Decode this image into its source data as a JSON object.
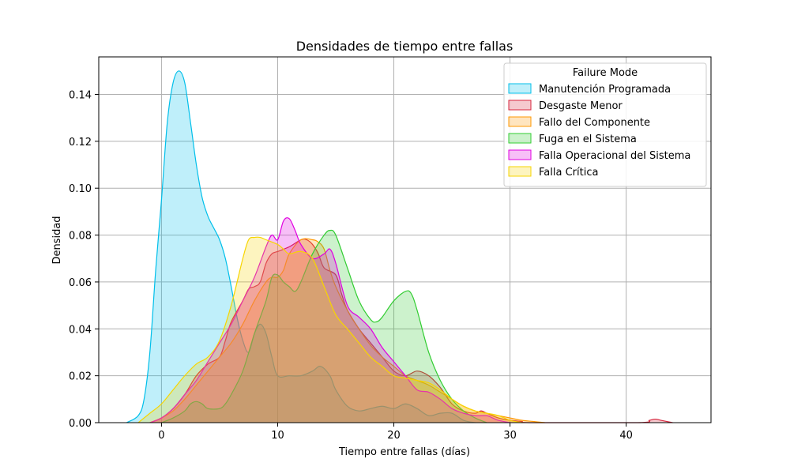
{
  "chart_data": {
    "type": "area",
    "title": "Densidades de tiempo entre fallas",
    "xlabel": "Tiempo entre fallas (días)",
    "ylabel": "Densidad",
    "xlim": [
      -5.4,
      47.3
    ],
    "ylim": [
      0,
      0.156
    ],
    "xticks": [
      0,
      10,
      20,
      30,
      40
    ],
    "yticks": [
      0.0,
      0.02,
      0.04,
      0.06,
      0.08,
      0.1,
      0.12,
      0.14
    ],
    "grid": true,
    "legend": {
      "title": "Failure Mode",
      "placement": "top-right"
    },
    "series": [
      {
        "name": "Manutención Programada",
        "color": "#00bfea",
        "points": [
          [
            -3,
            0
          ],
          [
            -2,
            0.003
          ],
          [
            -1.5,
            0.01
          ],
          [
            -1,
            0.03
          ],
          [
            -0.5,
            0.065
          ],
          [
            0,
            0.095
          ],
          [
            0.5,
            0.128
          ],
          [
            1,
            0.145
          ],
          [
            1.5,
            0.15
          ],
          [
            2,
            0.145
          ],
          [
            2.5,
            0.128
          ],
          [
            3,
            0.11
          ],
          [
            3.5,
            0.096
          ],
          [
            4,
            0.088
          ],
          [
            4.5,
            0.083
          ],
          [
            5,
            0.078
          ],
          [
            5.5,
            0.07
          ],
          [
            6,
            0.058
          ],
          [
            6.5,
            0.045
          ],
          [
            7,
            0.035
          ],
          [
            7.5,
            0.03
          ],
          [
            8,
            0.038
          ],
          [
            8.5,
            0.042
          ],
          [
            9,
            0.038
          ],
          [
            9.5,
            0.028
          ],
          [
            10,
            0.02
          ],
          [
            11,
            0.02
          ],
          [
            12,
            0.02
          ],
          [
            13,
            0.022
          ],
          [
            13.7,
            0.024
          ],
          [
            14.5,
            0.02
          ],
          [
            15,
            0.014
          ],
          [
            16,
            0.007
          ],
          [
            17,
            0.005
          ],
          [
            18,
            0.006
          ],
          [
            19,
            0.007
          ],
          [
            20,
            0.006
          ],
          [
            21,
            0.008
          ],
          [
            22,
            0.006
          ],
          [
            23,
            0.003
          ],
          [
            24,
            0.004
          ],
          [
            25,
            0.004
          ],
          [
            26,
            0.001
          ],
          [
            27,
            0
          ]
        ]
      },
      {
        "name": "Desgaste Menor",
        "color": "#d7263d",
        "points": [
          [
            -1,
            0
          ],
          [
            0,
            0.002
          ],
          [
            1,
            0.006
          ],
          [
            2,
            0.012
          ],
          [
            3,
            0.02
          ],
          [
            4,
            0.025
          ],
          [
            5,
            0.028
          ],
          [
            5.5,
            0.035
          ],
          [
            6,
            0.043
          ],
          [
            7,
            0.052
          ],
          [
            7.5,
            0.057
          ],
          [
            8,
            0.058
          ],
          [
            8.5,
            0.06
          ],
          [
            9,
            0.068
          ],
          [
            9.5,
            0.072
          ],
          [
            10,
            0.073
          ],
          [
            11,
            0.075
          ],
          [
            12,
            0.078
          ],
          [
            12.5,
            0.078
          ],
          [
            13,
            0.076
          ],
          [
            13.5,
            0.072
          ],
          [
            14,
            0.066
          ],
          [
            15,
            0.063
          ],
          [
            15.5,
            0.055
          ],
          [
            16,
            0.048
          ],
          [
            17,
            0.04
          ],
          [
            18,
            0.034
          ],
          [
            19,
            0.028
          ],
          [
            20,
            0.022
          ],
          [
            21,
            0.02
          ],
          [
            22,
            0.022
          ],
          [
            23,
            0.02
          ],
          [
            24,
            0.015
          ],
          [
            25,
            0.008
          ],
          [
            26,
            0.005
          ],
          [
            27,
            0.004
          ],
          [
            27.5,
            0.005
          ],
          [
            28,
            0.004
          ],
          [
            29,
            0.002
          ],
          [
            30,
            0.001
          ],
          [
            31,
            0.0005
          ],
          [
            32,
            0
          ],
          [
            41,
            0
          ],
          [
            42,
            0.001
          ],
          [
            42.5,
            0.0015
          ],
          [
            43,
            0.001
          ],
          [
            44,
            0
          ]
        ]
      },
      {
        "name": "Fallo del Componente",
        "color": "#ff9800",
        "points": [
          [
            -1,
            0
          ],
          [
            0,
            0.002
          ],
          [
            1,
            0.005
          ],
          [
            2,
            0.01
          ],
          [
            3,
            0.016
          ],
          [
            4,
            0.022
          ],
          [
            5,
            0.028
          ],
          [
            6,
            0.034
          ],
          [
            7,
            0.042
          ],
          [
            8,
            0.052
          ],
          [
            9,
            0.06
          ],
          [
            9.5,
            0.062
          ],
          [
            10,
            0.062
          ],
          [
            10.5,
            0.065
          ],
          [
            11,
            0.072
          ],
          [
            12,
            0.078
          ],
          [
            13,
            0.078
          ],
          [
            13.5,
            0.077
          ],
          [
            14,
            0.074
          ],
          [
            14.5,
            0.065
          ],
          [
            15,
            0.058
          ],
          [
            16,
            0.048
          ],
          [
            17,
            0.04
          ],
          [
            18,
            0.033
          ],
          [
            19,
            0.028
          ],
          [
            20,
            0.024
          ],
          [
            21,
            0.02
          ],
          [
            22,
            0.018
          ],
          [
            23,
            0.016
          ],
          [
            24,
            0.013
          ],
          [
            25,
            0.01
          ],
          [
            26,
            0.007
          ],
          [
            27,
            0.005
          ],
          [
            28,
            0.004
          ],
          [
            29,
            0.003
          ],
          [
            30,
            0.002
          ],
          [
            31,
            0.001
          ],
          [
            32,
            0.0005
          ],
          [
            33,
            0
          ]
        ]
      },
      {
        "name": "Fuga en el Sistema",
        "color": "#32cd32",
        "points": [
          [
            0,
            0
          ],
          [
            1,
            0.002
          ],
          [
            2,
            0.005
          ],
          [
            2.5,
            0.008
          ],
          [
            3,
            0.009
          ],
          [
            3.5,
            0.008
          ],
          [
            4,
            0.006
          ],
          [
            5,
            0.006
          ],
          [
            5.5,
            0.008
          ],
          [
            6,
            0.012
          ],
          [
            7,
            0.022
          ],
          [
            8,
            0.038
          ],
          [
            9,
            0.052
          ],
          [
            9.5,
            0.062
          ],
          [
            10,
            0.063
          ],
          [
            10.5,
            0.06
          ],
          [
            11,
            0.058
          ],
          [
            11.5,
            0.056
          ],
          [
            12,
            0.06
          ],
          [
            13,
            0.072
          ],
          [
            14,
            0.08
          ],
          [
            14.5,
            0.082
          ],
          [
            15,
            0.08
          ],
          [
            16,
            0.066
          ],
          [
            17,
            0.052
          ],
          [
            18,
            0.044
          ],
          [
            18.5,
            0.043
          ],
          [
            19,
            0.045
          ],
          [
            20,
            0.052
          ],
          [
            21,
            0.056
          ],
          [
            21.5,
            0.055
          ],
          [
            22,
            0.048
          ],
          [
            23,
            0.03
          ],
          [
            24,
            0.018
          ],
          [
            25,
            0.01
          ],
          [
            26,
            0.005
          ],
          [
            27,
            0.002
          ],
          [
            28,
            0
          ]
        ]
      },
      {
        "name": "Falla Operacional del Sistema",
        "color": "#e000e0",
        "points": [
          [
            -1,
            0
          ],
          [
            0,
            0.002
          ],
          [
            1,
            0.006
          ],
          [
            2,
            0.012
          ],
          [
            3,
            0.018
          ],
          [
            4,
            0.026
          ],
          [
            5,
            0.034
          ],
          [
            6,
            0.042
          ],
          [
            7,
            0.052
          ],
          [
            8,
            0.062
          ],
          [
            9,
            0.075
          ],
          [
            9.5,
            0.08
          ],
          [
            10,
            0.078
          ],
          [
            10.5,
            0.086
          ],
          [
            11,
            0.087
          ],
          [
            11.5,
            0.082
          ],
          [
            12,
            0.076
          ],
          [
            13,
            0.07
          ],
          [
            14,
            0.072
          ],
          [
            14.5,
            0.074
          ],
          [
            15,
            0.068
          ],
          [
            16,
            0.05
          ],
          [
            17,
            0.045
          ],
          [
            18,
            0.04
          ],
          [
            19,
            0.032
          ],
          [
            20,
            0.026
          ],
          [
            21,
            0.02
          ],
          [
            22,
            0.014
          ],
          [
            23,
            0.013
          ],
          [
            24,
            0.01
          ],
          [
            25,
            0.006
          ],
          [
            26,
            0.004
          ],
          [
            27,
            0.003
          ],
          [
            28,
            0.003
          ],
          [
            28.5,
            0.002
          ],
          [
            29,
            0.001
          ],
          [
            30,
            0
          ]
        ]
      },
      {
        "name": "Falla Crítica",
        "color": "#f7d500",
        "points": [
          [
            -2,
            0
          ],
          [
            -1,
            0.004
          ],
          [
            0,
            0.008
          ],
          [
            1,
            0.014
          ],
          [
            2,
            0.02
          ],
          [
            3,
            0.025
          ],
          [
            4,
            0.028
          ],
          [
            5,
            0.035
          ],
          [
            6,
            0.05
          ],
          [
            7,
            0.07
          ],
          [
            7.5,
            0.078
          ],
          [
            8,
            0.079
          ],
          [
            8.5,
            0.079
          ],
          [
            9,
            0.078
          ],
          [
            10,
            0.076
          ],
          [
            10.5,
            0.074
          ],
          [
            11,
            0.072
          ],
          [
            12,
            0.073
          ],
          [
            13,
            0.07
          ],
          [
            14,
            0.058
          ],
          [
            15,
            0.046
          ],
          [
            16,
            0.04
          ],
          [
            17,
            0.034
          ],
          [
            18,
            0.028
          ],
          [
            19,
            0.024
          ],
          [
            20,
            0.02
          ],
          [
            21,
            0.019
          ],
          [
            22,
            0.018
          ],
          [
            23,
            0.017
          ],
          [
            24,
            0.014
          ],
          [
            25,
            0.01
          ],
          [
            26,
            0.007
          ],
          [
            27,
            0.005
          ],
          [
            28,
            0.004
          ],
          [
            29,
            0.003
          ],
          [
            30,
            0.001
          ],
          [
            31,
            0
          ]
        ]
      }
    ]
  }
}
